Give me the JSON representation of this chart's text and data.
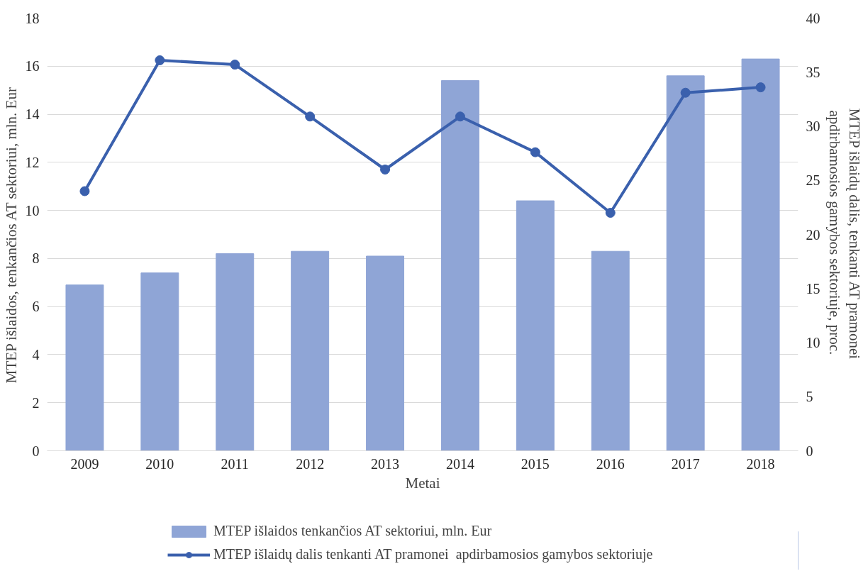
{
  "chart_data": {
    "type": "bar",
    "xlabel": "Metai",
    "ylabel": "MTEP išlaidos, tenkančios AT sektoriui, mln. Eur",
    "y2label": "MTEP išlaidų dalis, tenkanti AT pramonei  apdirbamosios gamybos sektoriuje, proc.",
    "categories": [
      "2009",
      "2010",
      "2011",
      "2012",
      "2013",
      "2014",
      "2015",
      "2016",
      "2017",
      "2018"
    ],
    "series": [
      {
        "name": "MTEP išlaidos tenkančios AT sektoriui, mln. Eur",
        "color": "#8fa5d6",
        "values": [
          6.9,
          7.4,
          8.2,
          8.3,
          8.1,
          15.4,
          10.4,
          8.3,
          15.6,
          16.3
        ]
      },
      {
        "name": "MTEP išlaidų dalis tenkanti AT pramonei  apdirbamosios gamybos sektoriuje",
        "type": "line",
        "axis": "y2",
        "marker": "circle",
        "color": "#3a60ad",
        "values": [
          24.0,
          36.1,
          35.7,
          30.9,
          26.0,
          30.9,
          27.6,
          22.0,
          33.1,
          33.6
        ]
      }
    ],
    "ylim": [
      0,
      18
    ],
    "yticks": [
      0,
      2,
      4,
      6,
      8,
      10,
      12,
      14,
      16,
      18
    ],
    "y2lim": [
      0,
      40
    ],
    "y2ticks": [
      0,
      5,
      10,
      15,
      20,
      25,
      30,
      35,
      40
    ],
    "grid": "y",
    "legend": "bottom"
  }
}
